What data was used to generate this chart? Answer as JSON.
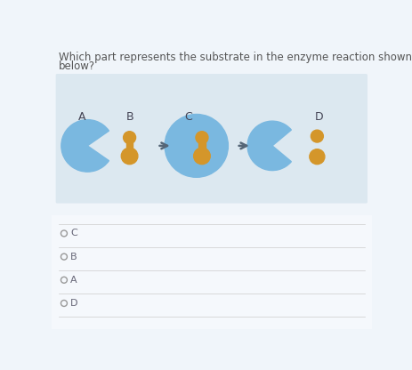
{
  "bg_color": "#dce8f0",
  "title_line1": "Which part represents the substrate in the enzyme reaction shown",
  "title_line2": "below?",
  "title_fontsize": 8.5,
  "title_color": "#555555",
  "label_color": "#444455",
  "label_fontsize": 9,
  "enzyme_color": "#7ab8e0",
  "substrate_color": "#d4962a",
  "arrow_color": "#556677",
  "choices": [
    "C",
    "B",
    "A",
    "D"
  ],
  "choice_fontsize": 8,
  "choice_color": "#666677",
  "panel_bg": "#f0f5fa"
}
